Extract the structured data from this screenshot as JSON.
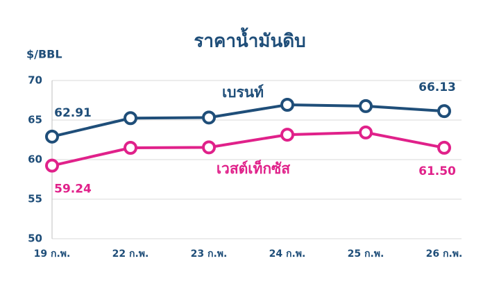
{
  "chart_data": {
    "type": "line",
    "title": "ราคาน้ำมันดิบ",
    "y_label": "$/BBL",
    "categories": [
      "19 ก.พ.",
      "22 ก.พ.",
      "23 ก.พ.",
      "24 ก.พ.",
      "25 ก.พ.",
      "26 ก.พ."
    ],
    "series": [
      {
        "name": "เบรนท์",
        "color": "#1f4e79",
        "values": [
          62.91,
          65.24,
          65.32,
          66.93,
          66.76,
          66.13
        ],
        "value_labels": [
          "62.91",
          null,
          null,
          null,
          null,
          "66.13"
        ]
      },
      {
        "name": "เวสต์เท็กซัส",
        "color": "#e0218a",
        "values": [
          59.24,
          61.49,
          61.55,
          63.15,
          63.43,
          61.5
        ],
        "value_labels": [
          "59.24",
          null,
          null,
          null,
          null,
          "61.50"
        ]
      }
    ],
    "ylim": [
      50,
      70
    ],
    "yticks": [
      50,
      55,
      60,
      65,
      70
    ],
    "grid": true
  }
}
